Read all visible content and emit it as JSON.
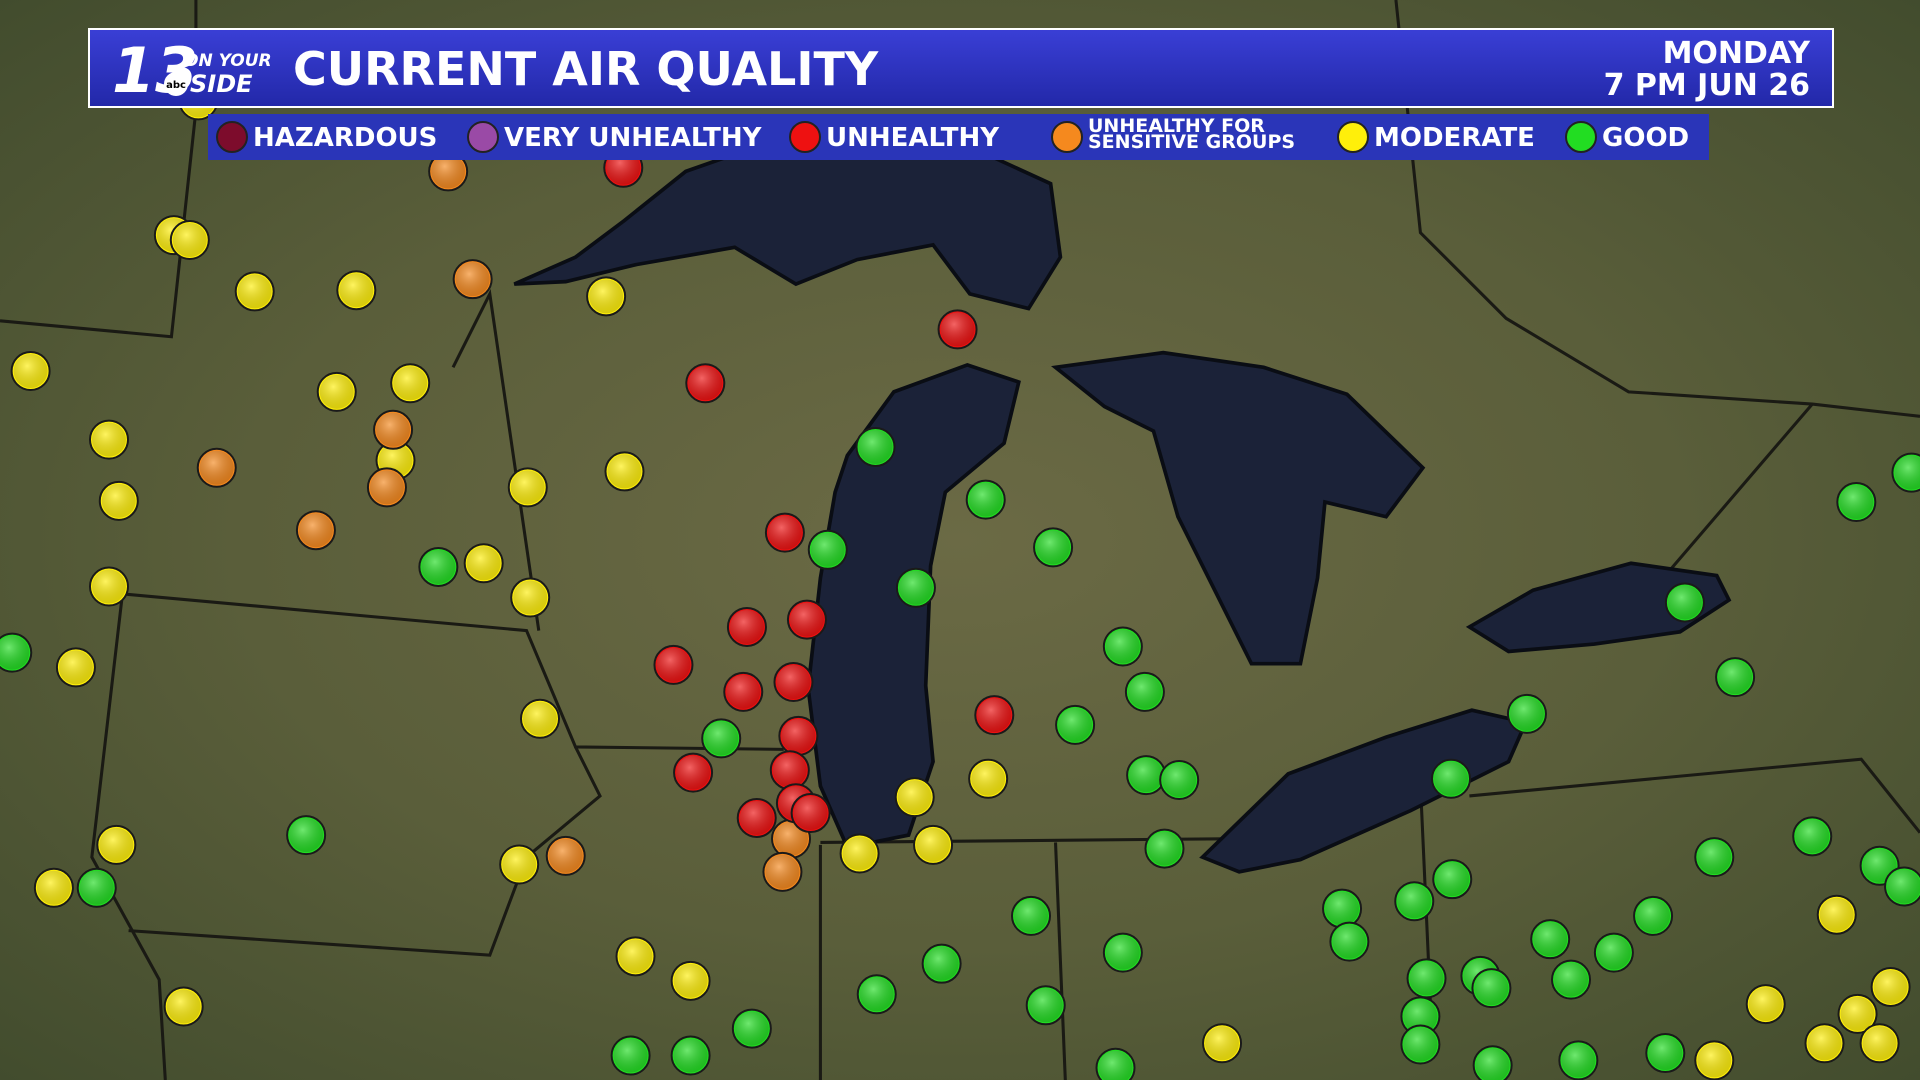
{
  "header": {
    "logo": {
      "number": "13",
      "tagline_top": "ON YOUR",
      "tagline_bottom": "SIDE",
      "network": "abc"
    },
    "title": "CURRENT AIR QUALITY",
    "day": "MONDAY",
    "datetime": "7 PM  JUN 26"
  },
  "legend": {
    "items": [
      {
        "label": "HAZARDOUS",
        "color": "#7d0c2c"
      },
      {
        "label": "VERY UNHEALTHY",
        "color": "#9a4aa6"
      },
      {
        "label": "UNHEALTHY",
        "color": "#ee1111"
      },
      {
        "label": "UNHEALTHY FOR SENSITIVE GROUPS",
        "color": "#f5891e"
      },
      {
        "label": "MODERATE",
        "color": "#ffef0a"
      },
      {
        "label": "GOOD",
        "color": "#22dd22"
      }
    ]
  }
}
